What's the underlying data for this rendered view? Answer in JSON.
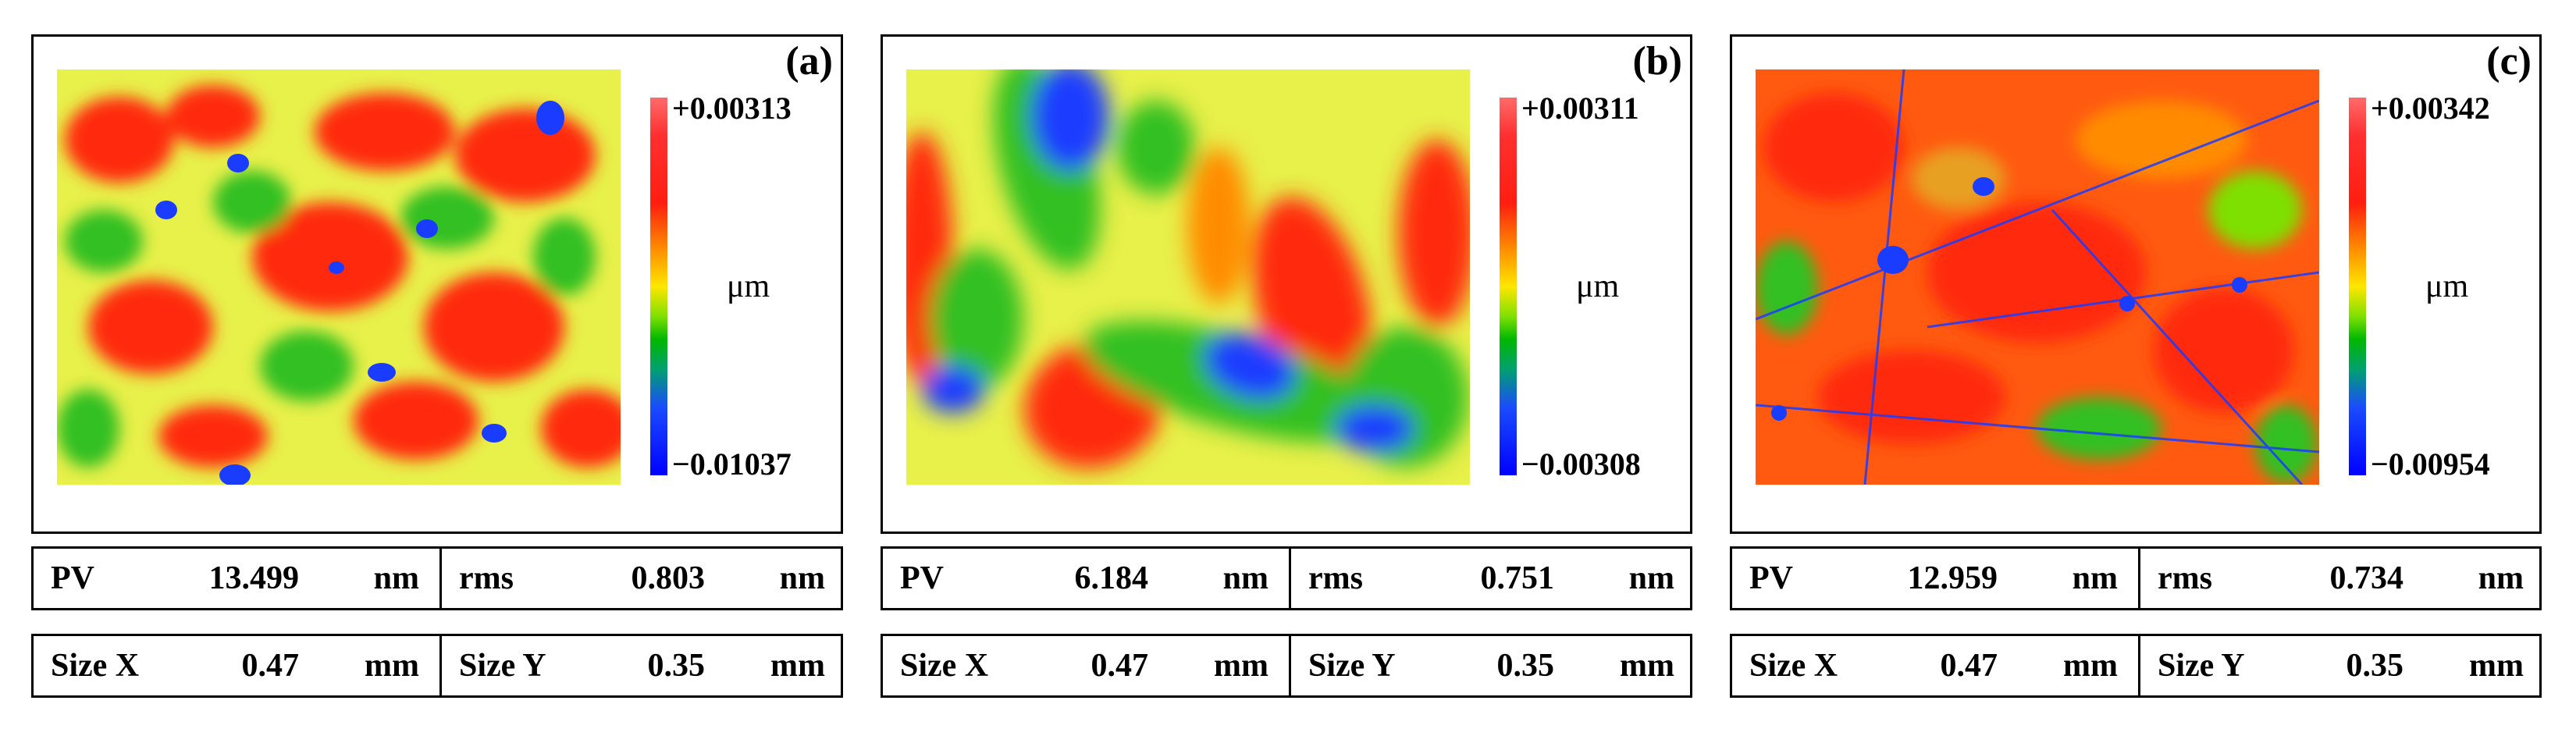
{
  "panels": [
    {
      "label": "(a)",
      "colorbar": {
        "max": "+0.00313",
        "min": "−0.01037",
        "unit": "μm"
      },
      "stats": {
        "pv_label": "PV",
        "pv_value": "13.499",
        "pv_unit": "nm",
        "rms_label": "rms",
        "rms_value": "0.803",
        "rms_unit": "nm",
        "sizex_label": "Size X",
        "sizex_value": "0.47",
        "sizex_unit": "mm",
        "sizey_label": "Size Y",
        "sizey_value": "0.35",
        "sizey_unit": "mm"
      }
    },
    {
      "label": "(b)",
      "colorbar": {
        "max": "+0.00311",
        "min": "−0.00308",
        "unit": "μm"
      },
      "stats": {
        "pv_label": "PV",
        "pv_value": "6.184",
        "pv_unit": "nm",
        "rms_label": "rms",
        "rms_value": "0.751",
        "rms_unit": "nm",
        "sizex_label": "Size X",
        "sizex_value": "0.47",
        "sizex_unit": "mm",
        "sizey_label": "Size Y",
        "sizey_value": "0.35",
        "sizey_unit": "mm"
      }
    },
    {
      "label": "(c)",
      "colorbar": {
        "max": "+0.00342",
        "min": "−0.00954",
        "unit": "μm"
      },
      "stats": {
        "pv_label": "PV",
        "pv_value": "12.959",
        "pv_unit": "nm",
        "rms_label": "rms",
        "rms_value": "0.734",
        "rms_unit": "nm",
        "sizex_label": "Size X",
        "sizex_value": "0.47",
        "sizex_unit": "mm",
        "sizey_label": "Size Y",
        "sizey_value": "0.35",
        "sizey_unit": "mm"
      }
    }
  ],
  "colors": {
    "high": "#ff2a10",
    "mid": "#e8f04a",
    "green": "#30c020",
    "low": "#1a3cff"
  }
}
